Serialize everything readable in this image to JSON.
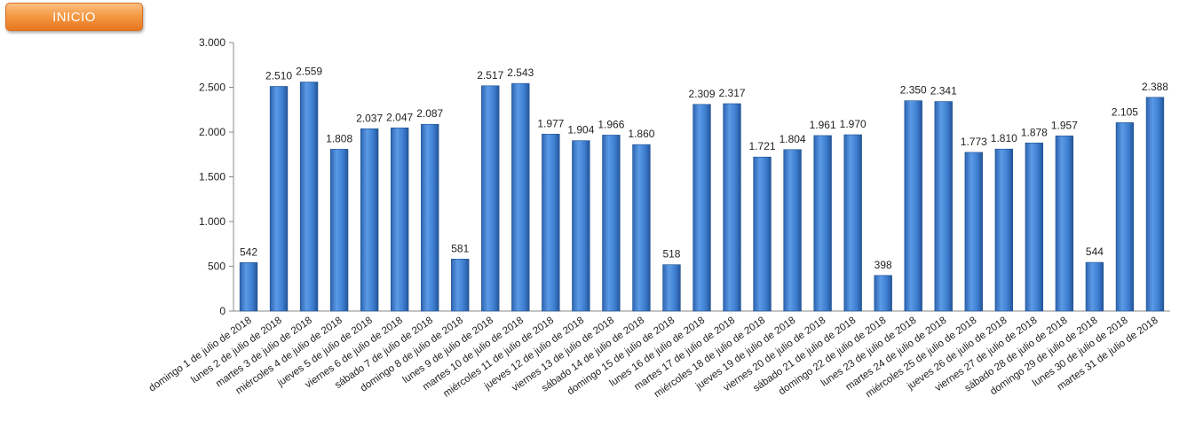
{
  "nav": {
    "inicio_label": "INICIO"
  },
  "colors": {
    "bar": "#3f7fcf",
    "bar_dark": "#1f4f8f",
    "axis": "#888888",
    "button": "#f08a2c"
  },
  "chart_data": {
    "type": "bar",
    "title": "",
    "xlabel": "",
    "ylabel": "",
    "ylim": [
      0,
      3000
    ],
    "yticks": [
      0,
      500,
      1000,
      1500,
      2000,
      2500,
      3000
    ],
    "ytick_labels": [
      "0",
      "500",
      "1.000",
      "1.500",
      "2.000",
      "2.500",
      "3.000"
    ],
    "grid": false,
    "categories": [
      "domingo 1 de julio de 2018",
      "lunes 2 de julio de 2018",
      "martes 3 de julio de 2018",
      "miércoles 4 de julio de 2018",
      "jueves 5 de julio de 2018",
      "viernes 6 de julio de 2018",
      "sábado 7 de julio de 2018",
      "domingo 8 de julio de 2018",
      "lunes 9 de julio de 2018",
      "martes 10 de julio de 2018",
      "miércoles 11 de julio de 2018",
      "jueves 12 de julio de 2018",
      "viernes 13 de julio de 2018",
      "sábado 14 de julio de 2018",
      "domingo 15 de julio de 2018",
      "lunes 16 de julio de 2018",
      "martes 17 de julio de 2018",
      "miércoles 18 de julio de 2018",
      "jueves 19 de julio de 2018",
      "viernes 20 de julio de 2018",
      "sábado 21 de julio de 2018",
      "domingo 22 de julio de 2018",
      "lunes 23 de julio de 2018",
      "martes 24 de julio de 2018",
      "miércoles 25 de julio de 2018",
      "jueves 26 de julio de 2018",
      "viernes 27 de julio de 2018",
      "sábado 28 de julio de 2018",
      "domingo 29 de julio de 2018",
      "lunes 30 de julio de 2018",
      "martes 31 de julio de 2018"
    ],
    "values": [
      542,
      2510,
      2559,
      1808,
      2037,
      2047,
      2087,
      581,
      2517,
      2543,
      1977,
      1904,
      1966,
      1860,
      518,
      2309,
      2317,
      1721,
      1804,
      1961,
      1970,
      398,
      2350,
      2341,
      1773,
      1810,
      1878,
      1957,
      544,
      2105,
      2388
    ],
    "value_labels": [
      "542",
      "2.510",
      "2.559",
      "1.808",
      "2.037",
      "2.047",
      "2.087",
      "581",
      "2.517",
      "2.543",
      "1.977",
      "1.904",
      "1.966",
      "1.860",
      "518",
      "2.309",
      "2.317",
      "1.721",
      "1.804",
      "1.961",
      "1.970",
      "398",
      "2.350",
      "2.341",
      "1.773",
      "1.810",
      "1.878",
      "1.957",
      "544",
      "2.105",
      "2.388"
    ]
  }
}
